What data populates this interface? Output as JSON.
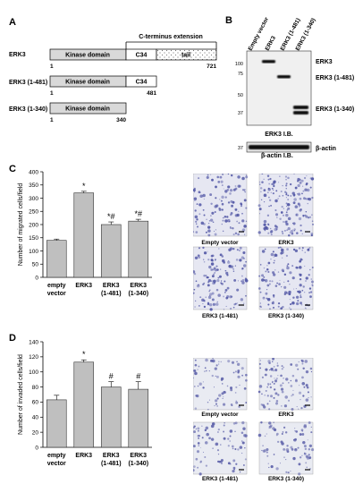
{
  "panels": {
    "A": "A",
    "B": "B",
    "C": "C",
    "D": "D"
  },
  "panel_a": {
    "extension_label": "C-terminus extension",
    "constructs": [
      {
        "name": "ERK3",
        "kinase": "Kinase domain",
        "c34": "C34",
        "tail": "tail",
        "start": "1",
        "end": "721"
      },
      {
        "name": "ERK3 (1-481)",
        "kinase": "Kinase domain",
        "c34": "C34",
        "start": "1",
        "end": "481"
      },
      {
        "name": "ERK3 (1-340)",
        "kinase": "Kinase domain",
        "start": "1",
        "end": "340"
      }
    ]
  },
  "panel_b": {
    "lanes": [
      "Empty vector",
      "ERK3",
      "ERK3 (1-481)",
      "ERK3 (1-340)"
    ],
    "markers": [
      "100",
      "75",
      "50",
      "37"
    ],
    "band_labels": [
      "ERK3",
      "ERK3 (1-481)",
      "ERK3 (1-340)"
    ],
    "ib_label": "ERK3 I.B.",
    "actin_marker": "37",
    "actin_label": "β-actin",
    "actin_ib_label": "β-actin I.B."
  },
  "images_c": {
    "captions": [
      "Empty vector",
      "ERK3",
      "ERK3 (1-481)",
      "ERK3 (1-340)"
    ]
  },
  "images_d": {
    "captions": [
      "Empty vector",
      "ERK3",
      "ERK3 (1-481)",
      "ERK3 (1-340)"
    ]
  },
  "chart_data": [
    {
      "type": "bar",
      "ylabel": "Number of migrated cells/field",
      "ylim": [
        0,
        400
      ],
      "yticks": [
        0,
        50,
        100,
        150,
        200,
        250,
        300,
        350,
        400
      ],
      "categories": [
        "empty vector",
        "ERK3",
        "ERK3 (1-481)",
        "ERK3 (1-340)"
      ],
      "values": [
        140,
        320,
        200,
        213
      ],
      "errors": [
        5,
        6,
        10,
        7
      ],
      "annotations": [
        "",
        "*",
        "*#",
        "*#"
      ],
      "bar_color": "#bfbfbf"
    },
    {
      "type": "bar",
      "ylabel": "Number of invaded cells/field",
      "ylim": [
        0,
        140
      ],
      "yticks": [
        0,
        20,
        40,
        60,
        80,
        100,
        120,
        140
      ],
      "categories": [
        "empty vector",
        "ERK3",
        "ERK3 (1-481)",
        "ERK3 (1-340)"
      ],
      "values": [
        63,
        113,
        80,
        77
      ],
      "errors": [
        6,
        3,
        7,
        10
      ],
      "annotations": [
        "",
        "*",
        "#",
        "#"
      ],
      "bar_color": "#bfbfbf"
    }
  ]
}
